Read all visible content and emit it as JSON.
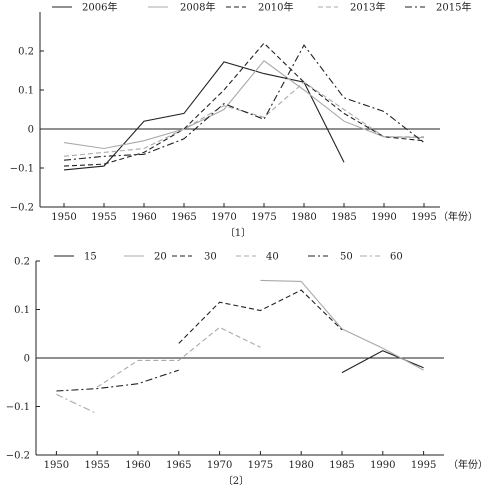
{
  "chart_data": [
    {
      "type": "line",
      "caption": "〔1〕",
      "xunit": "（年份）",
      "x": [
        1950,
        1955,
        1960,
        1965,
        1970,
        1975,
        1980,
        1985,
        1990,
        1995
      ],
      "ylim": [
        -0.2,
        0.3
      ],
      "yticks": [
        -0.2,
        -0.1,
        0,
        0.1,
        0.2
      ],
      "ytick_labels": [
        "−0.2",
        "−0.1",
        "0",
        "0.1",
        "0.2"
      ],
      "legend_position": "top",
      "series": [
        {
          "name": "2006年",
          "style": "solid-black",
          "color": "#222222",
          "values": [
            -0.105,
            -0.095,
            0.02,
            0.04,
            0.172,
            0.142,
            0.12,
            -0.085,
            null,
            null
          ]
        },
        {
          "name": "2008年",
          "style": "solid-gray",
          "color": "#aaaaaa",
          "values": [
            -0.035,
            -0.05,
            -0.03,
            0.0,
            0.05,
            0.175,
            0.1,
            0.02,
            -0.02,
            -0.022
          ]
        },
        {
          "name": "2010年",
          "style": "dashed-black",
          "color": "#222222",
          "values": [
            -0.095,
            -0.09,
            -0.06,
            0.0,
            0.1,
            0.22,
            0.12,
            0.04,
            -0.02,
            -0.03
          ]
        },
        {
          "name": "2013年",
          "style": "dashed-gray",
          "color": "#aaaaaa",
          "values": [
            -0.07,
            -0.06,
            -0.05,
            0.0,
            0.06,
            0.03,
            0.12,
            0.05,
            -0.02,
            -0.02
          ]
        },
        {
          "name": "2015年",
          "style": "dashdot-black",
          "color": "#222222",
          "values": [
            -0.08,
            -0.07,
            -0.065,
            -0.025,
            0.065,
            0.025,
            0.215,
            0.08,
            0.045,
            -0.035
          ]
        }
      ]
    },
    {
      "type": "line",
      "caption": "〔2〕",
      "xunit": "（年份）",
      "x": [
        1950,
        1955,
        1960,
        1965,
        1970,
        1975,
        1980,
        1985,
        1990,
        1995
      ],
      "ylim": [
        -0.2,
        0.2
      ],
      "yticks": [
        -0.2,
        -0.1,
        0,
        0.1,
        0.2
      ],
      "ytick_labels": [
        "−0.2",
        "−0.1",
        "0",
        "0.1",
        "0.2"
      ],
      "legend_position": "top",
      "series": [
        {
          "name": "15",
          "style": "solid-black",
          "color": "#222222",
          "values": [
            null,
            null,
            null,
            null,
            null,
            null,
            null,
            -0.03,
            0.015,
            -0.02
          ]
        },
        {
          "name": "20",
          "style": "solid-gray",
          "color": "#aaaaaa",
          "values": [
            null,
            null,
            null,
            null,
            null,
            0.16,
            0.158,
            0.06,
            0.02,
            -0.025
          ]
        },
        {
          "name": "30",
          "style": "dashed-black",
          "color": "#222222",
          "values": [
            null,
            null,
            null,
            0.03,
            0.115,
            0.098,
            0.14,
            0.058,
            null,
            null
          ]
        },
        {
          "name": "40",
          "style": "dashed-gray",
          "color": "#aaaaaa",
          "values": [
            null,
            -0.06,
            -0.005,
            -0.005,
            0.063,
            0.022,
            null,
            null,
            null,
            null
          ]
        },
        {
          "name": "50",
          "style": "dashdot-black",
          "color": "#222222",
          "values": [
            -0.068,
            -0.063,
            -0.053,
            -0.025,
            null,
            null,
            null,
            null,
            null,
            null
          ]
        },
        {
          "name": "60",
          "style": "dashdot-gray",
          "color": "#aaaaaa",
          "values": [
            -0.075,
            -0.115,
            null,
            null,
            null,
            null,
            null,
            null,
            null,
            null
          ]
        }
      ]
    }
  ]
}
